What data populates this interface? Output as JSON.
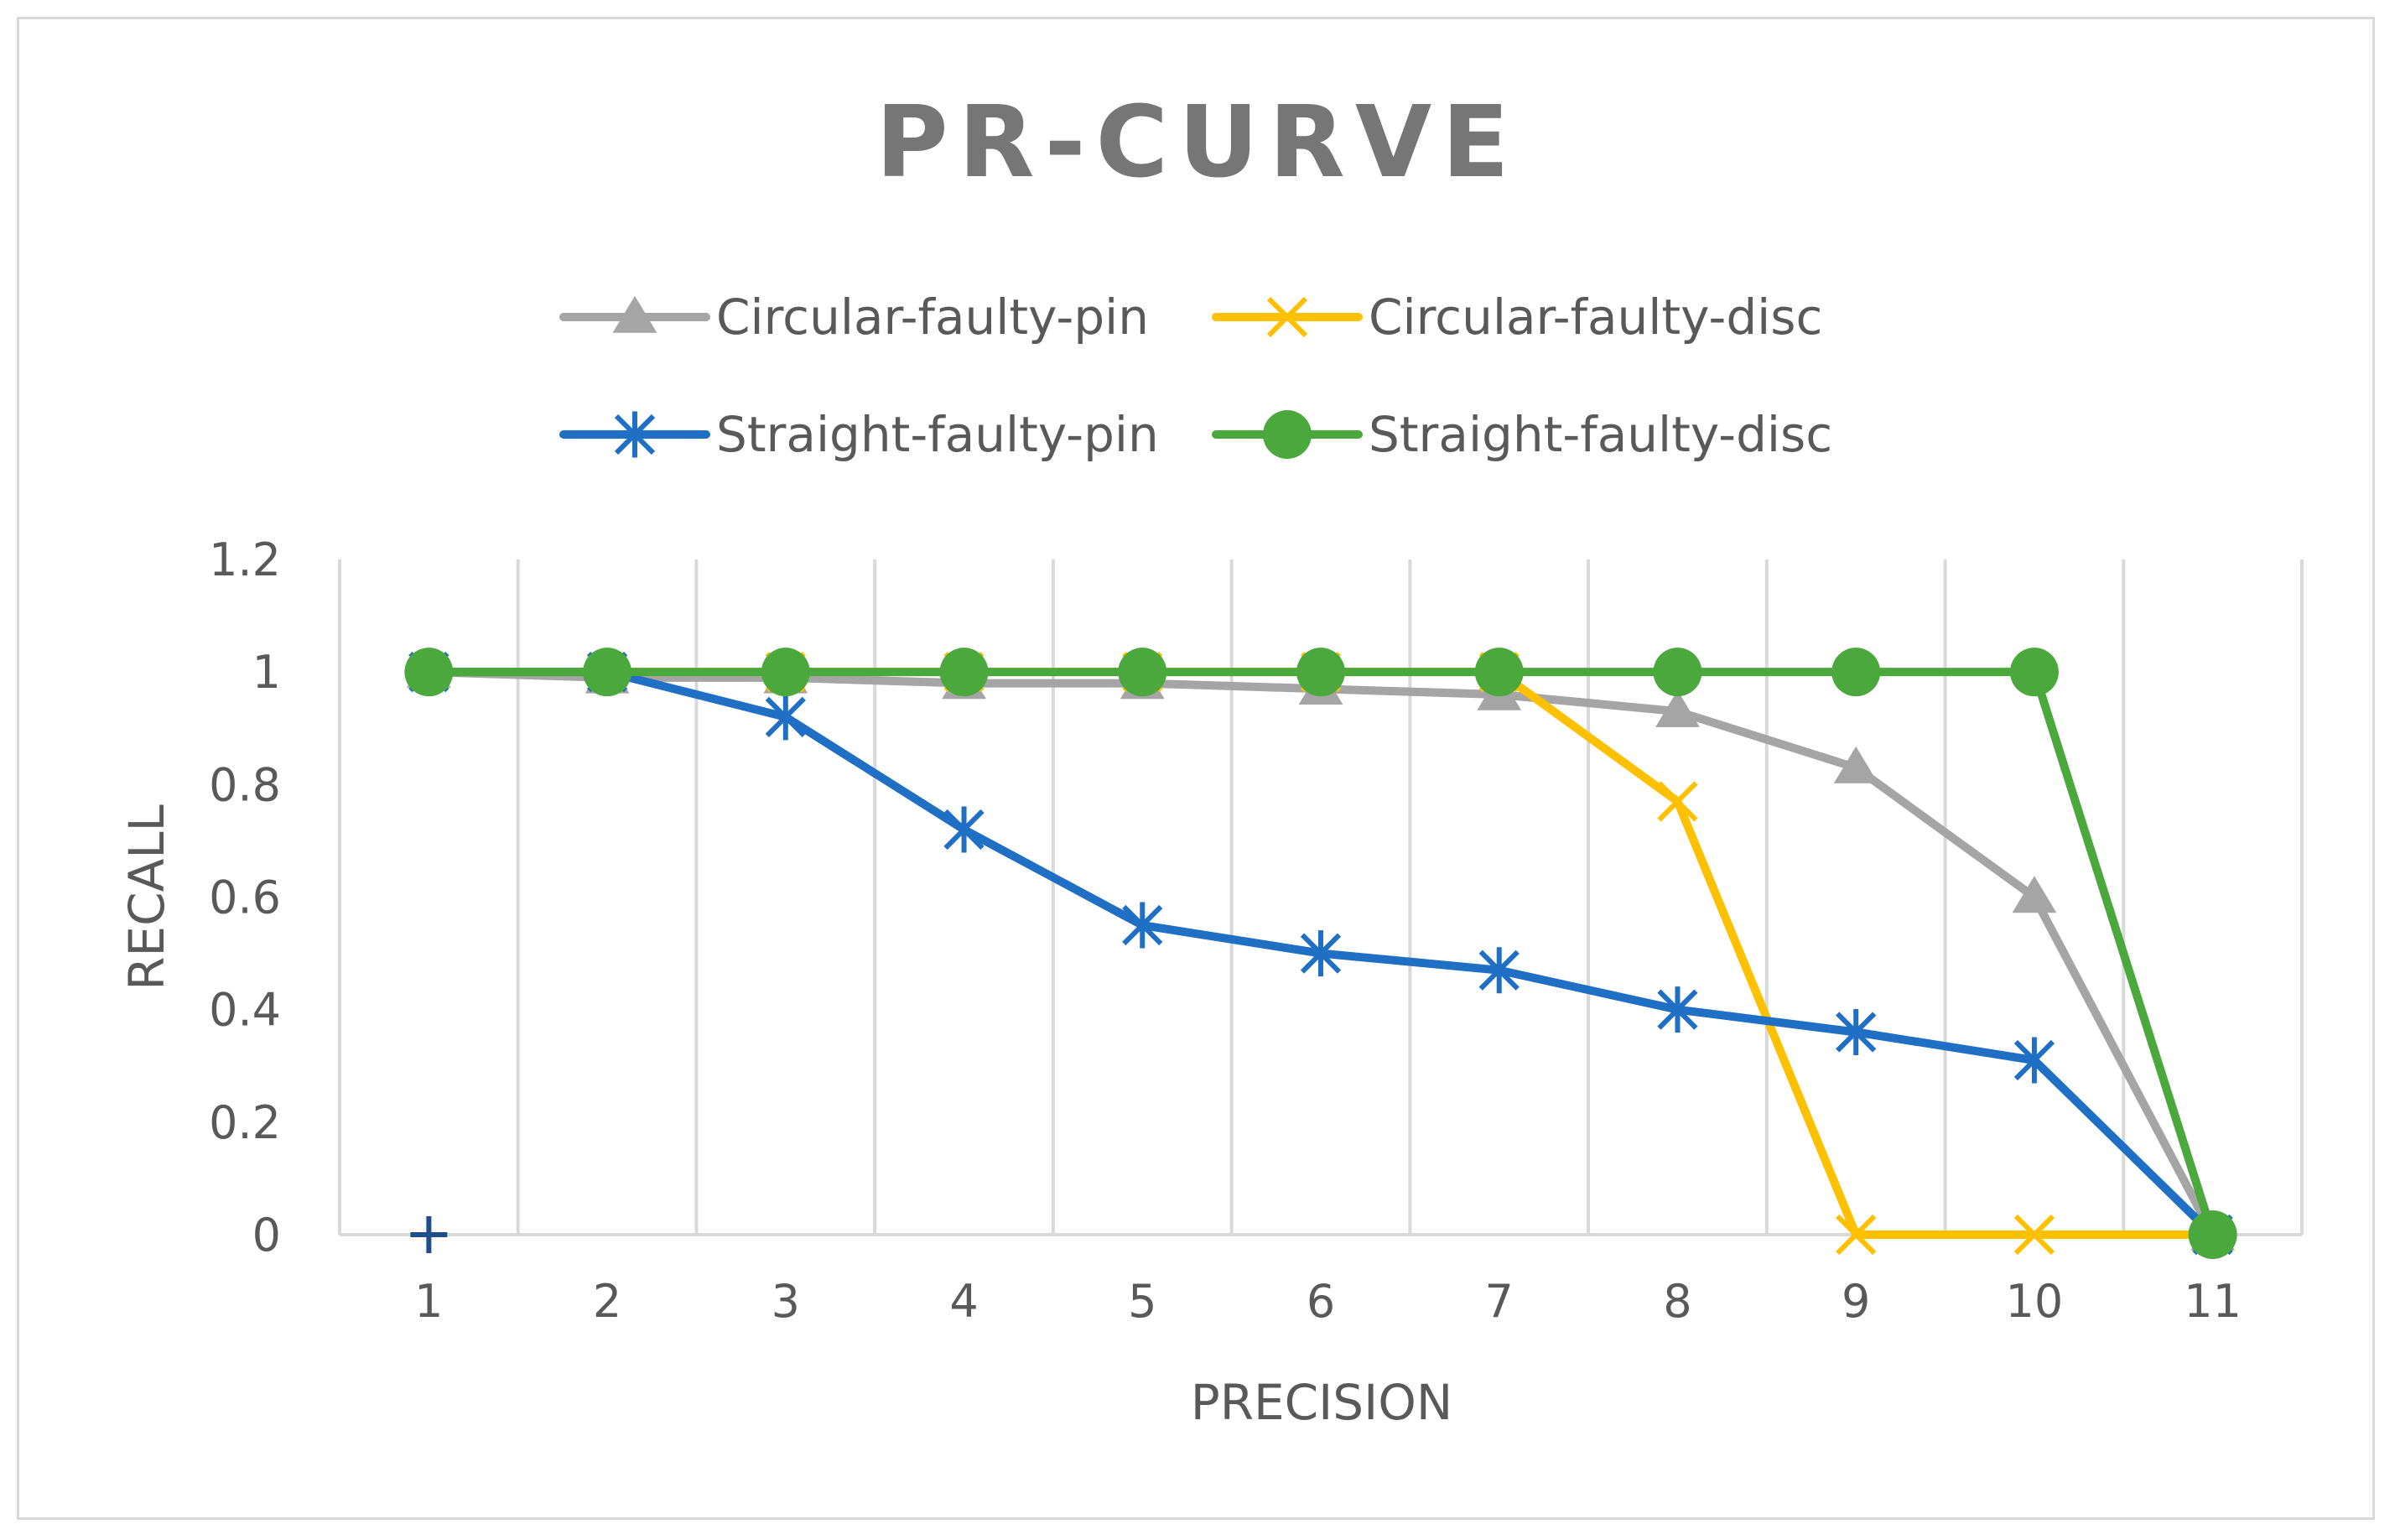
{
  "chart_data": {
    "type": "line",
    "title": "PR-CURVE",
    "xlabel": "PRECISION",
    "ylabel": "RECALL",
    "categories": [
      "1",
      "2",
      "3",
      "4",
      "5",
      "6",
      "7",
      "8",
      "9",
      "10",
      "11"
    ],
    "ylim": [
      0,
      1.2
    ],
    "yticks": [
      "0",
      "0.2",
      "0.4",
      "0.6",
      "0.8",
      "1",
      "1.2"
    ],
    "grid": "vertical",
    "legend_position": "top",
    "series": [
      {
        "name": "Circular-faulty-pin",
        "marker": "triangle",
        "color": "#a5a5a5",
        "values": [
          1,
          0.99,
          0.99,
          0.98,
          0.98,
          0.97,
          0.96,
          0.93,
          0.83,
          0.6,
          0
        ]
      },
      {
        "name": "Circular-faulty-disc",
        "marker": "x",
        "color": "#ffc000",
        "values": [
          1,
          1,
          1,
          1,
          1,
          1,
          1,
          0.77,
          0,
          0,
          0
        ]
      },
      {
        "name": "Straight-faulty-pin",
        "marker": "star",
        "color": "#1f6fc5",
        "values": [
          1,
          1,
          0.92,
          0.72,
          0.55,
          0.5,
          0.47,
          0.4,
          0.36,
          0.31,
          0
        ]
      },
      {
        "name": "Straight-faulty-disc",
        "marker": "circle",
        "color": "#4aa83c",
        "values": [
          1,
          1,
          1,
          1,
          1,
          1,
          1,
          1,
          1,
          1,
          0
        ]
      }
    ],
    "extra_marker": {
      "type": "plus",
      "category": "1",
      "value": 0,
      "color": "#1f4e8c"
    }
  }
}
